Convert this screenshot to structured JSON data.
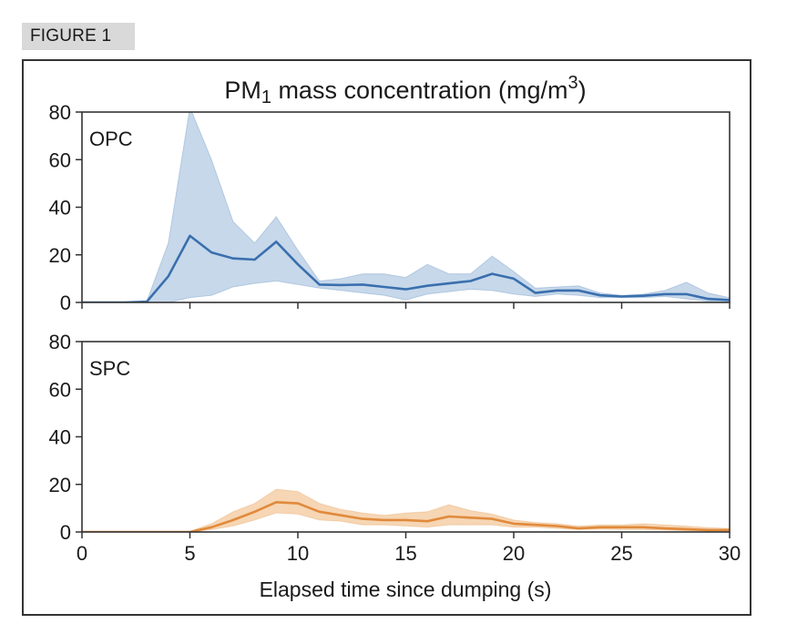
{
  "figure_label": "FIGURE 1",
  "chart_data": {
    "type": "line",
    "title": "PM",
    "title_subscript": "1",
    "title_rest": " mass concentration (mg/m",
    "title_superscript": "3",
    "title_end": ")",
    "xlabel": "Elapsed time since dumping (s)",
    "xlim": [
      0,
      30
    ],
    "xticks": [
      "0",
      "5",
      "10",
      "15",
      "20",
      "25",
      "30"
    ],
    "x": [
      0,
      1,
      2,
      3,
      4,
      5,
      6,
      7,
      8,
      9,
      10,
      11,
      12,
      13,
      14,
      15,
      16,
      17,
      18,
      19,
      20,
      21,
      22,
      23,
      24,
      25,
      26,
      27,
      28,
      29,
      30
    ],
    "panels": [
      {
        "label": "OPC",
        "color": "#3a6fae",
        "band_color": "#c6d8ea",
        "ylim": [
          0,
          80
        ],
        "yticks": [
          "0",
          "20",
          "40",
          "60",
          "80"
        ],
        "mean": [
          0,
          0,
          0,
          0.3,
          11,
          28,
          21,
          18.5,
          18,
          25.5,
          16,
          7.5,
          7.3,
          7.5,
          6.5,
          5.5,
          7,
          8,
          9,
          12,
          10,
          4,
          5,
          5,
          3,
          2.5,
          2.8,
          3.5,
          3.5,
          1.5,
          1
        ],
        "upper": [
          0,
          0,
          0,
          0.5,
          25,
          82,
          60,
          34,
          25,
          36,
          22,
          9,
          10,
          12,
          12,
          10.5,
          16,
          12,
          12,
          19.5,
          13,
          6,
          6.5,
          7,
          4,
          3,
          3.5,
          5,
          8.5,
          4,
          2
        ],
        "lower": [
          0,
          0,
          0,
          0,
          0,
          2,
          3,
          6.5,
          8,
          9,
          7.5,
          6,
          5,
          4,
          3,
          1,
          3.5,
          4.5,
          5.5,
          5,
          3.5,
          2.5,
          3.5,
          3,
          2,
          2,
          2,
          2.5,
          1.5,
          0.5,
          0
        ]
      },
      {
        "label": "SPC",
        "color": "#e08a3c",
        "band_color": "#f6d6b4",
        "ylim": [
          0,
          80
        ],
        "yticks": [
          "0",
          "20",
          "40",
          "60",
          "80"
        ],
        "mean": [
          0,
          0,
          0,
          0,
          0,
          0,
          2,
          5,
          8.5,
          12.5,
          12,
          8.5,
          7,
          5.5,
          5,
          5,
          4.5,
          6.5,
          6,
          5.5,
          3.5,
          3,
          2.5,
          1.5,
          2,
          2,
          2,
          1.5,
          1.2,
          0.8,
          0.8
        ],
        "upper": [
          0,
          0,
          0,
          0,
          0,
          0.3,
          3.5,
          8.5,
          12,
          18,
          17,
          12,
          9.5,
          8,
          7,
          8,
          8.5,
          11.5,
          9,
          7.5,
          5,
          4,
          3.5,
          2.5,
          3,
          3,
          3.5,
          3,
          2.5,
          1.8,
          1.5
        ],
        "lower": [
          0,
          0,
          0,
          0,
          0,
          0,
          1,
          2.5,
          5,
          8,
          7.5,
          5,
          4.5,
          3,
          3,
          2.5,
          2,
          3,
          3,
          3,
          2,
          2,
          1.5,
          1,
          1.2,
          1,
          1,
          0.8,
          0.5,
          0.3,
          0.3
        ]
      }
    ]
  }
}
